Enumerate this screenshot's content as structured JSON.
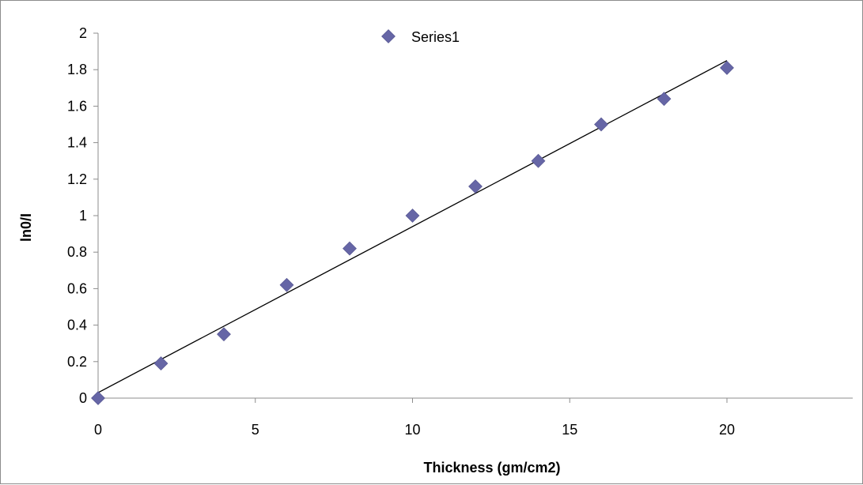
{
  "chart_data": {
    "type": "scatter",
    "title": "",
    "xlabel": "Thickness (gm/cm2)",
    "ylabel": "ln0/I",
    "xlim": [
      0,
      24
    ],
    "ylim": [
      0,
      2
    ],
    "x_ticks": [
      0,
      5,
      10,
      15,
      20
    ],
    "x_tick_labels": [
      "0",
      "5",
      "10",
      "15",
      "20"
    ],
    "y_ticks": [
      0,
      0.2,
      0.4,
      0.6,
      0.8,
      1,
      1.2,
      1.4,
      1.6,
      1.8,
      2
    ],
    "y_tick_labels": [
      "0",
      "0.2",
      "0.4",
      "0.6",
      "0.8",
      "1",
      "1.2",
      "1.4",
      "1.6",
      "1.8",
      "2"
    ],
    "grid": false,
    "legend": {
      "placement": "top-center",
      "entries": [
        "Series1"
      ]
    },
    "series": [
      {
        "name": "Series1",
        "color": "#6666a6",
        "marker": "diamond",
        "x": [
          0,
          2,
          4,
          6,
          8,
          10,
          12,
          14,
          16,
          18,
          20
        ],
        "y": [
          0,
          0.19,
          0.35,
          0.62,
          0.82,
          1.0,
          1.16,
          1.3,
          1.5,
          1.64,
          1.81
        ]
      }
    ],
    "trendline": {
      "type": "linear",
      "color": "#000000",
      "x": [
        0,
        20
      ],
      "y": [
        0.03,
        1.85
      ]
    }
  }
}
